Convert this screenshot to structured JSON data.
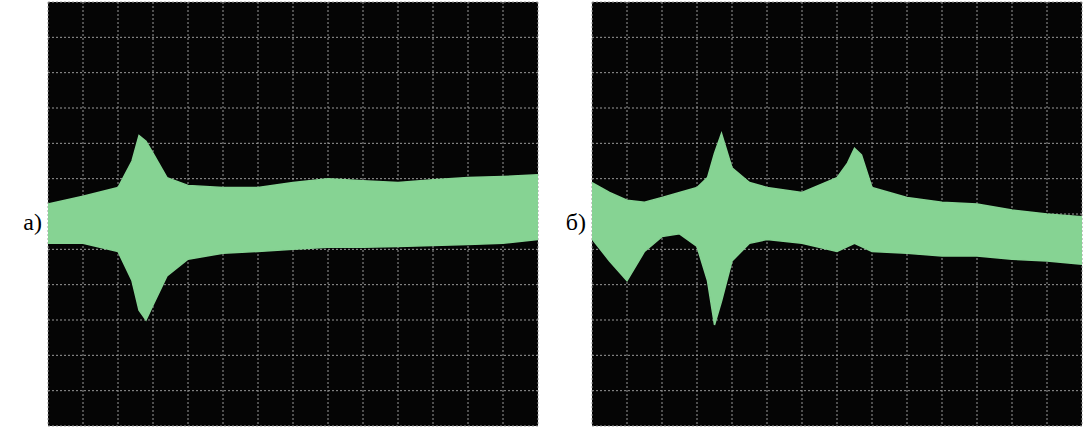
{
  "chart_data": [
    {
      "type": "area",
      "title": "а)",
      "grid": true,
      "tick_labels": false,
      "xlim": [
        0,
        14
      ],
      "ylim": [
        -6,
        6
      ],
      "xticks": [
        0,
        1,
        2,
        3,
        4,
        5,
        6,
        7,
        8,
        9,
        10,
        11,
        12,
        13,
        14
      ],
      "yticks": [
        -6,
        -5,
        -4,
        -3,
        -2,
        -1,
        0,
        1,
        2,
        3,
        4,
        5,
        6
      ],
      "x": [
        0,
        1,
        2,
        2.4,
        2.6,
        2.8,
        3,
        3.4,
        4,
        5,
        6,
        7,
        8,
        9,
        10,
        11,
        12,
        13,
        14
      ],
      "series": [
        {
          "color": "#86d393",
          "values": [
            0.28,
            0.5,
            0.75,
            1.5,
            2.22,
            2.06,
            1.72,
            1.03,
            0.81,
            0.75,
            0.75,
            0.89,
            1.0,
            0.94,
            0.89,
            0.97,
            1.03,
            1.06,
            1.11
          ]
        },
        {
          "color": "#86d393",
          "values": [
            -0.83,
            -0.83,
            -1.06,
            -1.89,
            -2.72,
            -3.0,
            -2.58,
            -1.75,
            -1.28,
            -1.11,
            -1.06,
            -1.0,
            -0.94,
            -0.94,
            -0.92,
            -0.89,
            -0.86,
            -0.83,
            -0.72
          ]
        }
      ]
    },
    {
      "type": "area",
      "title": "б)",
      "grid": true,
      "tick_labels": false,
      "xlim": [
        0,
        14
      ],
      "ylim": [
        -6,
        6
      ],
      "xticks": [
        0,
        1,
        2,
        3,
        4,
        5,
        6,
        7,
        8,
        9,
        10,
        11,
        12,
        13,
        14
      ],
      "yticks": [
        -6,
        -5,
        -4,
        -3,
        -2,
        -1,
        0,
        1,
        2,
        3,
        4,
        5,
        6
      ],
      "x": [
        0,
        0.5,
        1,
        1.5,
        2,
        2.5,
        3,
        3.3,
        3.5,
        3.7,
        4,
        4.5,
        5,
        6,
        7,
        7.3,
        7.5,
        7.7,
        8,
        9,
        10,
        11,
        12,
        13,
        14
      ],
      "series": [
        {
          "color": "#86d393",
          "values": [
            0.89,
            0.61,
            0.39,
            0.33,
            0.47,
            0.61,
            0.75,
            1.03,
            1.72,
            2.28,
            1.31,
            0.89,
            0.75,
            0.61,
            1.03,
            1.44,
            1.86,
            1.67,
            0.75,
            0.47,
            0.33,
            0.28,
            0.11,
            0.0,
            -0.08
          ]
        },
        {
          "color": "#86d393",
          "values": [
            -0.7,
            -1.33,
            -1.89,
            -1.06,
            -0.64,
            -0.56,
            -0.92,
            -1.89,
            -3.14,
            -2.47,
            -1.33,
            -0.83,
            -0.72,
            -0.83,
            -1.06,
            -0.92,
            -0.83,
            -0.92,
            -1.06,
            -1.11,
            -1.19,
            -1.19,
            -1.28,
            -1.33,
            -1.42
          ]
        }
      ]
    }
  ]
}
